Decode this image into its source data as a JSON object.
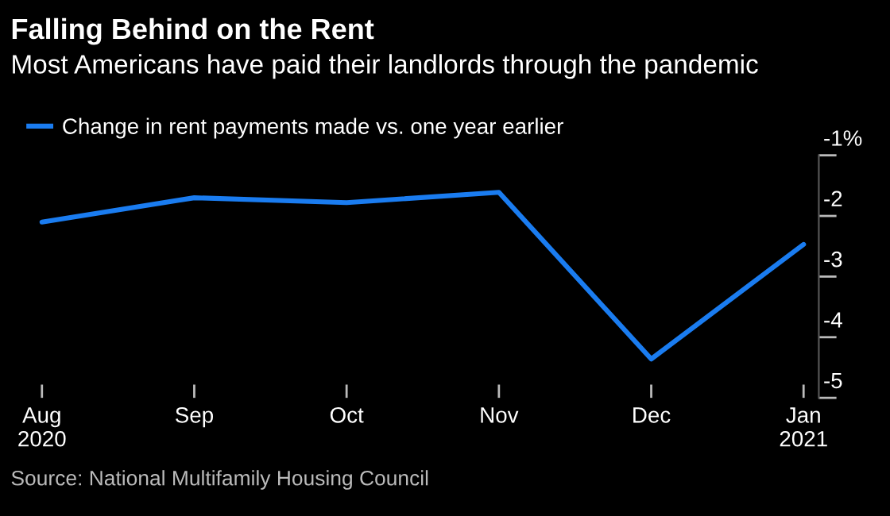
{
  "chart_data": {
    "type": "line",
    "title": "Falling Behind on the Rent",
    "subtitle": "Most Americans have paid their landlords through the pandemic",
    "categories": [
      "Aug\n2020",
      "Sep",
      "Oct",
      "Nov",
      "Dec",
      "Jan\n2021"
    ],
    "series": [
      {
        "name": "Change in rent payments made vs. one year earlier",
        "color": "#1a7cf0",
        "values": [
          -2.1,
          -1.7,
          -1.78,
          -1.61,
          -4.36,
          -2.47
        ]
      }
    ],
    "ylim": [
      -5,
      -1
    ],
    "yticks": [
      {
        "value": -1,
        "label": "-1%"
      },
      {
        "value": -2,
        "label": "-2"
      },
      {
        "value": -3,
        "label": "-3"
      },
      {
        "value": -4,
        "label": "-4"
      },
      {
        "value": -5,
        "label": "-5"
      }
    ],
    "grid": false,
    "legend": "top left",
    "marker": "none",
    "line_style": "solid",
    "annotations": [
      "Source: National Multifamily Housing Council"
    ]
  }
}
